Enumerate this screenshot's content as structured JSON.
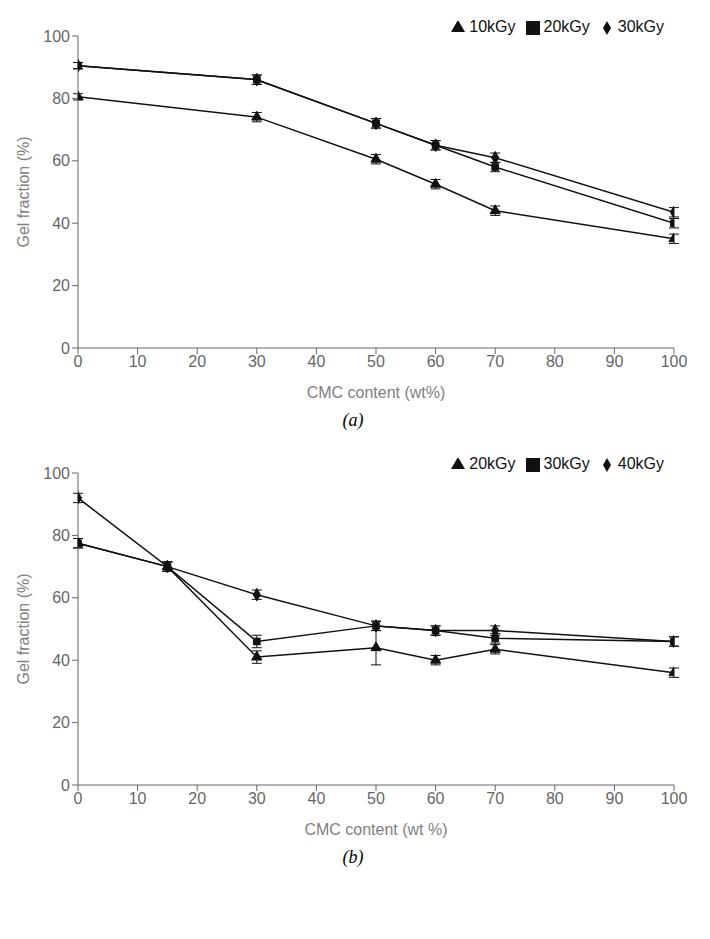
{
  "chart_data": [
    {
      "type": "line",
      "title": "(a)",
      "x_label": "CMC content (wt%)",
      "y_label": "Gel fraction (%)",
      "xlim": [
        0,
        100
      ],
      "ylim": [
        0,
        100
      ],
      "xticks": [
        0,
        10,
        20,
        30,
        40,
        50,
        60,
        70,
        80,
        90,
        100
      ],
      "yticks": [
        0,
        20,
        40,
        60,
        80,
        100
      ],
      "grid": false,
      "legend": "upper right",
      "x": [
        0,
        30,
        50,
        60,
        70,
        100
      ],
      "series": [
        {
          "name": "10kGy",
          "color": "#111111",
          "marker": "triangle",
          "line_style": "solid",
          "values": [
            80.5,
            74.0,
            60.5,
            52.5,
            44.0,
            35.0
          ],
          "yerr": [
            1.0,
            1.5,
            1.5,
            1.5,
            1.5,
            1.5
          ]
        },
        {
          "name": "20kGy",
          "color": "#111111",
          "marker": "square",
          "line_style": "solid",
          "values": [
            90.5,
            86.0,
            72.0,
            65.0,
            58.0,
            40.0
          ],
          "yerr": [
            1.0,
            1.5,
            1.5,
            1.5,
            1.5,
            1.5
          ]
        },
        {
          "name": "30kGy",
          "color": "#111111",
          "marker": "diamond",
          "line_style": "solid",
          "values": [
            90.5,
            86.0,
            72.0,
            65.0,
            61.0,
            43.5
          ],
          "yerr": [
            1.0,
            1.5,
            1.5,
            1.5,
            1.5,
            1.5
          ]
        }
      ]
    },
    {
      "type": "line",
      "title": "(b)",
      "x_label": "CMC content (wt %)",
      "y_label": "Gel fraction (%)",
      "xlim": [
        0,
        100
      ],
      "ylim": [
        0,
        100
      ],
      "xticks": [
        0,
        10,
        20,
        30,
        40,
        50,
        60,
        70,
        80,
        90,
        100
      ],
      "yticks": [
        0,
        20,
        40,
        60,
        80,
        100
      ],
      "grid": false,
      "legend": "upper right",
      "x": [
        0,
        15,
        30,
        50,
        60,
        70,
        100
      ],
      "series": [
        {
          "name": "20kGy",
          "color": "#111111",
          "marker": "triangle",
          "line_style": "solid",
          "values": [
            77.5,
            70.0,
            41.0,
            44.0,
            40.0,
            43.5,
            36.0
          ],
          "yerr": [
            1.5,
            1.5,
            2.0,
            5.5,
            1.5,
            1.5,
            1.5
          ]
        },
        {
          "name": "30kGy",
          "color": "#111111",
          "marker": "square",
          "line_style": "solid",
          "values": [
            77.5,
            70.0,
            46.0,
            51.0,
            49.5,
            47.0,
            46.0
          ],
          "yerr": [
            1.5,
            1.5,
            2.0,
            1.5,
            1.5,
            1.5,
            1.5
          ]
        },
        {
          "name": "40kGy",
          "color": "#111111",
          "marker": "diamond",
          "line_style": "solid",
          "values": [
            92.0,
            70.0,
            61.0,
            51.0,
            49.5,
            49.5,
            46.0
          ],
          "yerr": [
            1.5,
            1.5,
            1.5,
            1.5,
            1.5,
            1.5,
            1.5
          ]
        }
      ]
    }
  ]
}
